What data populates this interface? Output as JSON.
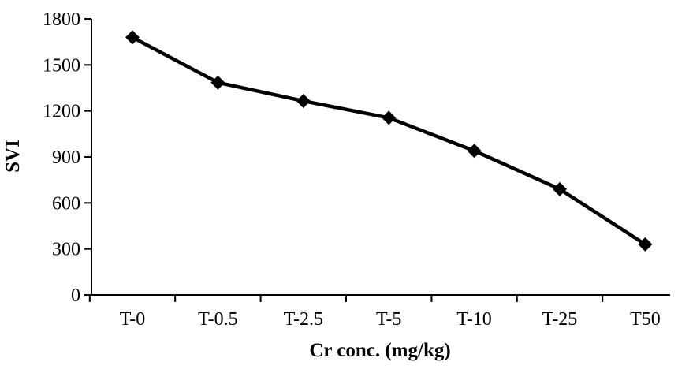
{
  "chart_data": {
    "type": "line",
    "title": "",
    "xlabel": "Cr conc. (mg/kg)",
    "ylabel": "SVI",
    "categories": [
      "T-0",
      "T-0.5",
      "T-2.5",
      "T-5",
      "T-10",
      "T-25",
      "T50"
    ],
    "series": [
      {
        "values": [
          1680,
          1385,
          1265,
          1155,
          940,
          690,
          330
        ]
      }
    ],
    "ylim": [
      0,
      1800
    ],
    "yticks": [
      0,
      300,
      600,
      900,
      1200,
      1500,
      1800
    ],
    "ytick_labels": [
      "0",
      "300",
      "600",
      "900",
      "1200",
      "1500",
      "1800"
    ],
    "grid": false,
    "legend": "none",
    "line_color": "#000000",
    "marker": "diamond"
  }
}
